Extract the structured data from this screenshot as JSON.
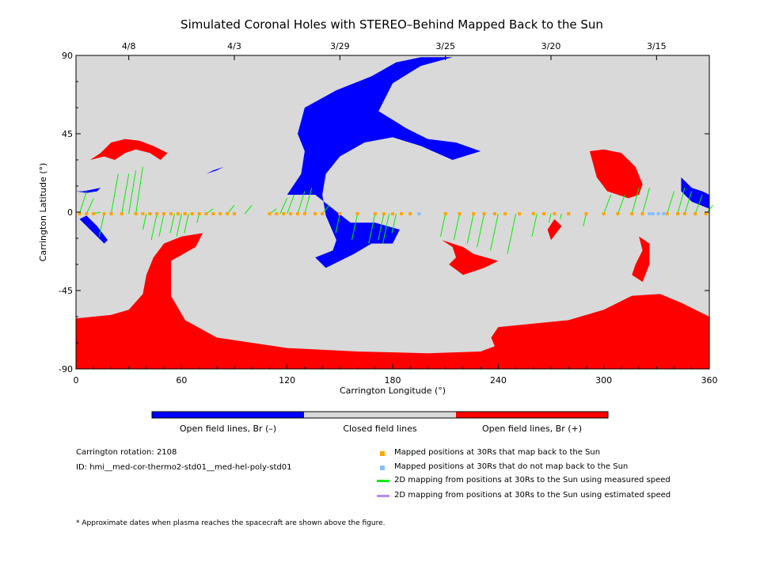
{
  "chart_data": {
    "type": "map",
    "title": "Simulated Coronal Holes with STEREO–Behind Mapped Back to the Sun",
    "xlabel": "Carrington Longitude (°)",
    "ylabel": "Carrington Latitude (°)",
    "xlim": [
      0,
      360
    ],
    "ylim": [
      -90,
      90
    ],
    "x_ticks": [
      "0",
      "60",
      "120",
      "180",
      "240",
      "300",
      "360"
    ],
    "y_ticks": [
      "90",
      "45",
      "0",
      "-45",
      "-90"
    ],
    "top_axis_dates": [
      {
        "label": "4/8",
        "lon": 30
      },
      {
        "label": "4/3",
        "lon": 90
      },
      {
        "label": "3/29",
        "lon": 150
      },
      {
        "label": "3/25",
        "lon": 210
      },
      {
        "label": "3/20",
        "lon": 270
      },
      {
        "label": "3/15",
        "lon": 330
      }
    ],
    "colors": {
      "closed": "#d9d9d9",
      "open_negative": "#0000ff",
      "open_positive": "#ff0000",
      "mapped_back": "#ffa500",
      "not_mapped": "#87bfff",
      "measured_line": "#00ee00",
      "estimated_line": "#b98ae8"
    },
    "colorbar": [
      {
        "label": "Open field lines, Br (–)",
        "color": "#0000ff"
      },
      {
        "label": "Closed field lines",
        "color": "#d9d9d9"
      },
      {
        "label": "Open field lines, Br (+)",
        "color": "#ff0000"
      }
    ],
    "regions": {
      "negative": [
        [
          [
            120,
            10
          ],
          [
            128,
            22
          ],
          [
            130,
            35
          ],
          [
            126,
            45
          ],
          [
            130,
            60
          ],
          [
            148,
            70
          ],
          [
            168,
            78
          ],
          [
            182,
            86
          ],
          [
            196,
            89
          ],
          [
            214,
            89
          ],
          [
            196,
            84
          ],
          [
            180,
            74
          ],
          [
            172,
            58
          ],
          [
            188,
            48
          ],
          [
            200,
            42
          ],
          [
            216,
            40
          ],
          [
            230,
            35
          ],
          [
            214,
            30
          ],
          [
            196,
            38
          ],
          [
            180,
            43
          ],
          [
            164,
            40
          ],
          [
            150,
            32
          ],
          [
            142,
            22
          ],
          [
            140,
            10
          ],
          [
            142,
            -2
          ],
          [
            148,
            -16
          ],
          [
            146,
            -22
          ],
          [
            136,
            -26
          ],
          [
            142,
            -32
          ],
          [
            158,
            -24
          ],
          [
            168,
            -18
          ],
          [
            180,
            -18
          ],
          [
            184,
            -10
          ],
          [
            170,
            -6
          ],
          [
            156,
            -6
          ],
          [
            146,
            2
          ],
          [
            136,
            10
          ]
        ],
        [
          [
            0,
            12
          ],
          [
            6,
            11
          ],
          [
            12,
            12
          ],
          [
            14,
            14
          ],
          [
            4,
            12
          ]
        ],
        [
          [
            6,
            -2
          ],
          [
            12,
            -8
          ],
          [
            18,
            -16
          ],
          [
            16,
            -18
          ],
          [
            8,
            -10
          ],
          [
            2,
            -4
          ]
        ],
        [
          [
            70,
            20
          ],
          [
            78,
            24
          ],
          [
            84,
            26
          ],
          [
            80,
            24
          ],
          [
            74,
            22
          ]
        ],
        [
          [
            344,
            20
          ],
          [
            350,
            14
          ],
          [
            356,
            12
          ],
          [
            360,
            10
          ],
          [
            360,
            2
          ],
          [
            350,
            6
          ],
          [
            344,
            12
          ]
        ]
      ],
      "positive": [
        [
          [
            8,
            30
          ],
          [
            14,
            34
          ],
          [
            20,
            40
          ],
          [
            28,
            42
          ],
          [
            36,
            41
          ],
          [
            44,
            38
          ],
          [
            52,
            34
          ],
          [
            48,
            30
          ],
          [
            42,
            34
          ],
          [
            34,
            36
          ],
          [
            28,
            34
          ],
          [
            22,
            30
          ],
          [
            16,
            32
          ]
        ],
        [
          [
            0,
            -61
          ],
          [
            10,
            -60
          ],
          [
            20,
            -59
          ],
          [
            30,
            -56
          ],
          [
            38,
            -47
          ],
          [
            40,
            -36
          ],
          [
            44,
            -26
          ],
          [
            50,
            -18
          ],
          [
            60,
            -14
          ],
          [
            72,
            -12
          ],
          [
            68,
            -20
          ],
          [
            54,
            -28
          ],
          [
            54,
            -48
          ],
          [
            62,
            -62
          ],
          [
            80,
            -72
          ],
          [
            120,
            -78
          ],
          [
            160,
            -80
          ],
          [
            200,
            -81
          ],
          [
            230,
            -80
          ],
          [
            238,
            -77
          ],
          [
            236,
            -72
          ],
          [
            240,
            -66
          ],
          [
            260,
            -64
          ],
          [
            280,
            -62
          ],
          [
            300,
            -56
          ],
          [
            316,
            -48
          ],
          [
            332,
            -47
          ],
          [
            344,
            -52
          ],
          [
            352,
            -56
          ],
          [
            360,
            -60
          ],
          [
            360,
            -90
          ],
          [
            0,
            -90
          ]
        ],
        [
          [
            208,
            -16
          ],
          [
            214,
            -20
          ],
          [
            216,
            -26
          ],
          [
            212,
            -30
          ],
          [
            220,
            -36
          ],
          [
            232,
            -32
          ],
          [
            240,
            -28
          ],
          [
            226,
            -24
          ],
          [
            220,
            -20
          ]
        ],
        [
          [
            292,
            35
          ],
          [
            300,
            36
          ],
          [
            310,
            34
          ],
          [
            318,
            26
          ],
          [
            322,
            16
          ],
          [
            320,
            10
          ],
          [
            314,
            8
          ],
          [
            302,
            12
          ],
          [
            296,
            20
          ]
        ],
        [
          [
            320,
            -14
          ],
          [
            322,
            -22
          ],
          [
            318,
            -30
          ],
          [
            316,
            -36
          ],
          [
            322,
            -40
          ],
          [
            326,
            -30
          ],
          [
            326,
            -18
          ]
        ],
        [
          [
            272,
            -4
          ],
          [
            276,
            -8
          ],
          [
            270,
            -16
          ],
          [
            268,
            -10
          ]
        ]
      ]
    },
    "mapped_back_points": [
      2,
      6,
      10,
      16,
      20,
      26,
      34,
      38,
      42,
      46,
      50,
      54,
      58,
      62,
      66,
      70,
      74,
      78,
      82,
      86,
      90,
      110,
      114,
      118,
      122,
      126,
      130,
      136,
      140,
      150,
      160,
      170,
      175,
      180,
      185,
      190,
      210,
      218,
      226,
      232,
      238,
      244,
      252,
      260,
      266,
      272,
      280,
      290,
      300,
      308,
      316,
      322,
      336,
      342,
      346,
      352,
      358
    ],
    "not_mapped_points": [
      195,
      326,
      328,
      331,
      334
    ],
    "measured_links": [
      [
        2,
        12
      ],
      [
        6,
        8
      ],
      [
        10,
        0
      ],
      [
        16,
        -14
      ],
      [
        20,
        22
      ],
      [
        26,
        22
      ],
      [
        30,
        24
      ],
      [
        34,
        26
      ],
      [
        40,
        -10
      ],
      [
        46,
        -16
      ],
      [
        50,
        -14
      ],
      [
        56,
        -12
      ],
      [
        60,
        -14
      ],
      [
        64,
        -12
      ],
      [
        70,
        -6
      ],
      [
        74,
        2
      ],
      [
        86,
        4
      ],
      [
        96,
        4
      ],
      [
        110,
        2
      ],
      [
        116,
        8
      ],
      [
        120,
        10
      ],
      [
        126,
        12
      ],
      [
        130,
        14
      ],
      [
        140,
        4
      ],
      [
        150,
        -12
      ],
      [
        160,
        -16
      ],
      [
        170,
        -18
      ],
      [
        175,
        -16
      ],
      [
        178,
        -18
      ],
      [
        182,
        -12
      ],
      [
        210,
        -14
      ],
      [
        218,
        -16
      ],
      [
        226,
        -18
      ],
      [
        232,
        -20
      ],
      [
        240,
        -22
      ],
      [
        250,
        -24
      ],
      [
        262,
        -14
      ],
      [
        270,
        -6
      ],
      [
        276,
        -4
      ],
      [
        290,
        -8
      ],
      [
        300,
        10
      ],
      [
        308,
        10
      ],
      [
        316,
        14
      ],
      [
        322,
        14
      ],
      [
        336,
        12
      ],
      [
        342,
        14
      ],
      [
        346,
        12
      ],
      [
        352,
        10
      ],
      [
        358,
        4
      ]
    ],
    "estimated_links": []
  },
  "footer": {
    "rotation": "Carrington rotation: 2108",
    "id": "ID: hmi__med-cor-thermo2-std01__med-hel-poly-std01",
    "legend": [
      {
        "label": "Mapped positions at 30Rs that map back to the Sun",
        "color": "#ffa500",
        "marker": "square"
      },
      {
        "label": "Mapped positions at 30Rs that do not map back to the Sun",
        "color": "#87bfff",
        "marker": "square"
      },
      {
        "label": "2D mapping from positions at 30Rs to the Sun using measured speed",
        "color": "#00ee00",
        "marker": "line"
      },
      {
        "label": "2D mapping from positions at 30Rs to the Sun using estimated speed",
        "color": "#b98ae8",
        "marker": "line"
      }
    ],
    "note": "* Approximate dates when plasma reaches the spacecraft are shown above the figure."
  }
}
